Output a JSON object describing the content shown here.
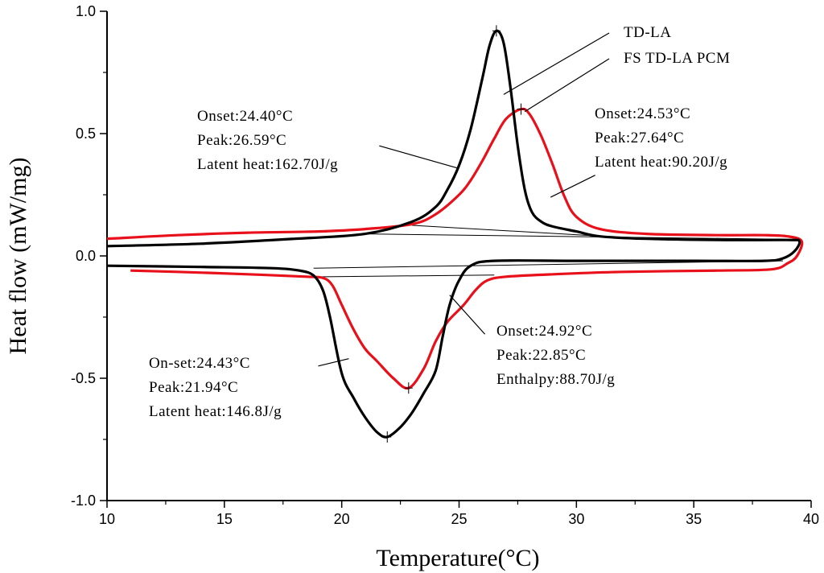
{
  "chart_data": {
    "type": "line",
    "title": "",
    "xlabel": "Temperature(°C)",
    "ylabel": "Heat flow (mW/mg)",
    "xlim": [
      10,
      40
    ],
    "ylim": [
      -1.0,
      1.0
    ],
    "x_ticks": [
      10,
      15,
      20,
      25,
      30,
      35,
      40
    ],
    "y_ticks": [
      -1.0,
      -0.5,
      0.0,
      0.5,
      1.0
    ],
    "x_tick_labels": [
      "10",
      "15",
      "20",
      "25",
      "30",
      "35",
      "40"
    ],
    "y_tick_labels": [
      "-1.0",
      "-0.5",
      "0.0",
      "0.5",
      "1.0"
    ],
    "grid": false,
    "series": [
      {
        "name": "TD-LA",
        "color": "#000000",
        "heating": [
          [
            10,
            0.04
          ],
          [
            14,
            0.05
          ],
          [
            18,
            0.07
          ],
          [
            21,
            0.09
          ],
          [
            23,
            0.14
          ],
          [
            24,
            0.2
          ],
          [
            24.5,
            0.27
          ],
          [
            25,
            0.37
          ],
          [
            25.5,
            0.52
          ],
          [
            26,
            0.73
          ],
          [
            26.3,
            0.86
          ],
          [
            26.59,
            0.92
          ],
          [
            26.9,
            0.87
          ],
          [
            27.2,
            0.68
          ],
          [
            27.5,
            0.45
          ],
          [
            27.8,
            0.27
          ],
          [
            28.1,
            0.18
          ],
          [
            28.5,
            0.14
          ],
          [
            29,
            0.12
          ],
          [
            30,
            0.1
          ],
          [
            31,
            0.08
          ],
          [
            33,
            0.07
          ],
          [
            36,
            0.065
          ],
          [
            39,
            0.065
          ],
          [
            39.5,
            0.06
          ]
        ],
        "cooling": [
          [
            39.5,
            0.05
          ],
          [
            39.3,
            0.02
          ],
          [
            38.8,
            -0.01
          ],
          [
            38,
            -0.02
          ],
          [
            35,
            -0.02
          ],
          [
            30,
            -0.02
          ],
          [
            26.5,
            -0.02
          ],
          [
            25.5,
            -0.04
          ],
          [
            25,
            -0.1
          ],
          [
            24.6,
            -0.2
          ],
          [
            24.3,
            -0.33
          ],
          [
            24,
            -0.47
          ],
          [
            23.5,
            -0.56
          ],
          [
            23,
            -0.64
          ],
          [
            22.5,
            -0.7
          ],
          [
            21.94,
            -0.74
          ],
          [
            21.5,
            -0.72
          ],
          [
            21,
            -0.66
          ],
          [
            20.5,
            -0.58
          ],
          [
            20,
            -0.48
          ],
          [
            19.5,
            -0.25
          ],
          [
            19.2,
            -0.14
          ],
          [
            18.8,
            -0.08
          ],
          [
            18.2,
            -0.06
          ],
          [
            17,
            -0.05
          ],
          [
            14,
            -0.045
          ],
          [
            10,
            -0.04
          ]
        ]
      },
      {
        "name": "FS TD-LA PCM",
        "color": "#e8101a",
        "heating": [
          [
            10,
            0.07
          ],
          [
            13,
            0.085
          ],
          [
            16,
            0.095
          ],
          [
            19,
            0.1
          ],
          [
            21,
            0.11
          ],
          [
            23,
            0.13
          ],
          [
            24,
            0.17
          ],
          [
            25,
            0.25
          ],
          [
            25.5,
            0.31
          ],
          [
            26,
            0.39
          ],
          [
            26.5,
            0.48
          ],
          [
            27,
            0.56
          ],
          [
            27.64,
            0.6
          ],
          [
            28,
            0.58
          ],
          [
            28.5,
            0.49
          ],
          [
            29,
            0.37
          ],
          [
            29.5,
            0.24
          ],
          [
            30,
            0.16
          ],
          [
            31,
            0.11
          ],
          [
            33,
            0.09
          ],
          [
            36,
            0.085
          ],
          [
            38,
            0.085
          ],
          [
            39,
            0.08
          ],
          [
            39.6,
            0.06
          ]
        ],
        "cooling": [
          [
            39.6,
            0.04
          ],
          [
            39.4,
            0.0
          ],
          [
            39,
            -0.03
          ],
          [
            38.3,
            -0.055
          ],
          [
            36,
            -0.06
          ],
          [
            32,
            -0.065
          ],
          [
            29,
            -0.075
          ],
          [
            27,
            -0.085
          ],
          [
            26.2,
            -0.1
          ],
          [
            25.7,
            -0.14
          ],
          [
            25.2,
            -0.2
          ],
          [
            24.5,
            -0.27
          ],
          [
            24,
            -0.35
          ],
          [
            23.5,
            -0.46
          ],
          [
            22.85,
            -0.54
          ],
          [
            22.2,
            -0.5
          ],
          [
            21.5,
            -0.43
          ],
          [
            21,
            -0.38
          ],
          [
            20.5,
            -0.3
          ],
          [
            20,
            -0.2
          ],
          [
            19.6,
            -0.12
          ],
          [
            19.2,
            -0.09
          ],
          [
            18.5,
            -0.085
          ],
          [
            16,
            -0.075
          ],
          [
            13,
            -0.065
          ],
          [
            11,
            -0.06
          ]
        ]
      }
    ],
    "baselines": [
      [
        [
          23.0,
          0.125
        ],
        [
          33.0,
          0.07
        ]
      ],
      [
        [
          21.0,
          0.09
        ],
        [
          39.0,
          0.068
        ]
      ],
      [
        [
          18.5,
          -0.086
        ],
        [
          26.5,
          -0.078
        ]
      ],
      [
        [
          18.8,
          -0.05
        ],
        [
          38.8,
          -0.02
        ]
      ]
    ],
    "peak_markers": [
      [
        26.59,
        0.92
      ],
      [
        27.64,
        0.6
      ],
      [
        21.94,
        -0.74
      ],
      [
        22.85,
        -0.54
      ]
    ],
    "annotations": [
      {
        "lines": [
          "Onset:24.40°C",
          "Peak:26.59°C",
          "Latent heat:162.70J/g"
        ],
        "anchor": [
          24.9,
          0.36
        ],
        "from": [
          21.6,
          0.45
        ]
      },
      {
        "lines": [
          "Onset:24.53°C",
          "Peak:27.64°C",
          "Latent heat:90.20J/g"
        ],
        "anchor": [
          28.9,
          0.24
        ],
        "from": [
          30.8,
          0.33
        ]
      },
      {
        "lines": [
          "On-set:24.43°C",
          "Peak:21.94°C",
          "Latent heat:146.8J/g"
        ],
        "anchor": [
          20.3,
          -0.42
        ],
        "from": [
          19.0,
          -0.45
        ]
      },
      {
        "lines": [
          "Onset:24.92°C",
          "Peak:22.85°C",
          "Enthalpy:88.70J/g"
        ],
        "anchor": [
          24.6,
          -0.16
        ],
        "from": [
          26.1,
          -0.32
        ]
      }
    ],
    "legend": [
      {
        "label": "TD-LA",
        "anchor": [
          26.9,
          0.66
        ]
      },
      {
        "label": "FS TD-LA PCM",
        "anchor": [
          27.8,
          0.59
        ]
      }
    ],
    "legend_placement": "top-right"
  }
}
